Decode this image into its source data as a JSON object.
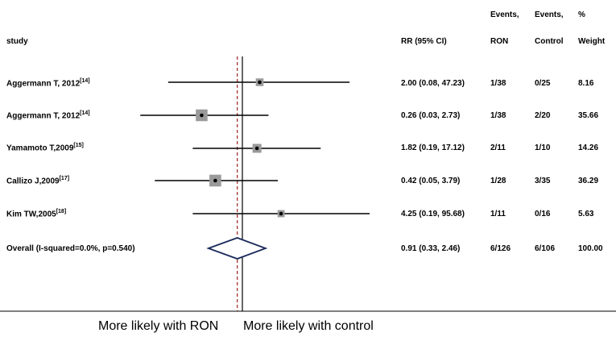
{
  "chart_data": {
    "type": "forest",
    "columns": {
      "study": "study",
      "rr": "RR (95% CI)",
      "events_ron": [
        "Events,",
        "RON"
      ],
      "events_control": [
        "Events,",
        "Control"
      ],
      "weight": [
        "%",
        "Weight"
      ]
    },
    "studies": [
      {
        "label": "Aggermann T, 2012",
        "ref": "[14]",
        "rr": 2.0,
        "lo": 0.08,
        "hi": 47.23,
        "ci_text": "2.00 (0.08, 47.23)",
        "ron": "1/38",
        "control": "0/25",
        "weight": "8.16",
        "weight_value": 8.16
      },
      {
        "label": "Aggermann T, 2012",
        "ref": "[14]",
        "rr": 0.26,
        "lo": 0.03,
        "hi": 2.73,
        "ci_text": "0.26 (0.03, 2.73)",
        "ron": "1/38",
        "control": "2/20",
        "weight": "35.66",
        "weight_value": 35.66
      },
      {
        "label": "Yamamoto T,2009",
        "ref": "[15]",
        "rr": 1.82,
        "lo": 0.19,
        "hi": 17.12,
        "ci_text": "1.82 (0.19, 17.12)",
        "ron": "2/11",
        "control": "1/10",
        "weight": "14.26",
        "weight_value": 14.26
      },
      {
        "label": "Callizo J,2009",
        "ref": "[17]",
        "rr": 0.42,
        "lo": 0.05,
        "hi": 3.79,
        "ci_text": "0.42 (0.05, 3.79)",
        "ron": "1/28",
        "control": "3/35",
        "weight": "36.29",
        "weight_value": 36.29
      },
      {
        "label": "Kim TW,2005",
        "ref": "[18]",
        "rr": 4.25,
        "lo": 0.19,
        "hi": 95.68,
        "ci_text": "4.25 (0.19, 95.68)",
        "ron": "1/11",
        "control": "0/16",
        "weight": "5.63",
        "weight_value": 5.63
      }
    ],
    "overall": {
      "label": "Overall (I-squared=0.0%, p=0.540)",
      "rr": 0.91,
      "lo": 0.33,
      "hi": 2.46,
      "ci_text": "0.91 (0.33, 2.46)",
      "ron": "6/126",
      "control": "6/106",
      "weight": "100.00"
    },
    "x_scale": "log",
    "null_line": 1,
    "bottom_labels": {
      "left": "More likely with RON",
      "right": "More likely with control"
    },
    "colors": {
      "lines": "#000000",
      "box": "#9a9a9a",
      "diamond": "#1b2a5c",
      "overall_line": "#a02020"
    }
  }
}
